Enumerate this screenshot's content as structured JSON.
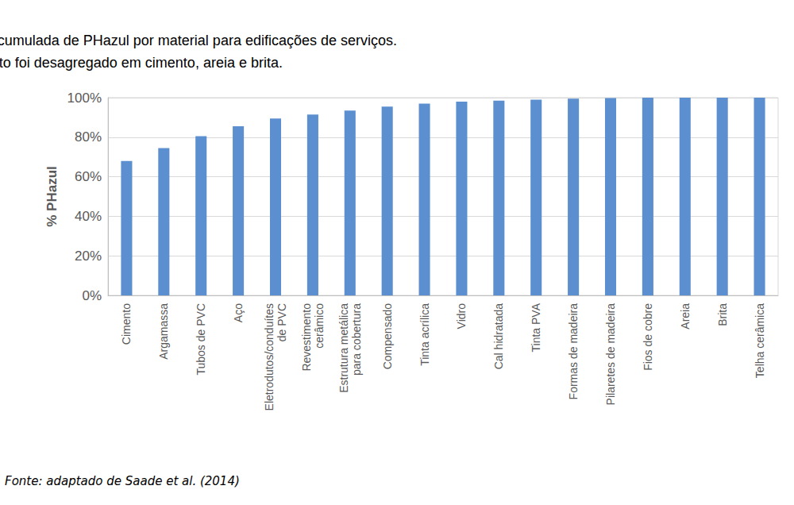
{
  "chart_data": {
    "type": "bar",
    "title": "Gráfico de contribuição acumulada de PHazul por material para edificações de serviços.\nConcreto foi desagregado em cimento, areia e brita.",
    "y_label": "% PHazul",
    "source": "Fonte: adaptado de Saade et al. (2014)",
    "categories": [
      "Cimento",
      "Argamassa",
      "Tubos de PVC",
      "Aço",
      "Eletrodutos/conduítes\nde PVC",
      "Revestimento\ncerâmico",
      "Estrutura metálica\npara cobertura",
      "Compensado",
      "Tinta acrílica",
      "Vidro",
      "Cal hidratada",
      "Tinta PVA",
      "Formas de madeira",
      "Pilaretes de madeira",
      "Fios de cobre",
      "Areia",
      "Brita",
      "Telha cerâmica"
    ],
    "values": [
      68,
      74.5,
      80.5,
      85.5,
      89.5,
      91.5,
      93.5,
      95.5,
      97,
      98,
      98.5,
      99,
      99.5,
      99.8,
      100,
      100,
      100,
      100
    ],
    "color": "#5b8fd0",
    "ylim": [
      0,
      100
    ],
    "yticks": [
      {
        "value": 0,
        "label": "0%"
      },
      {
        "value": 20,
        "label": "20%"
      },
      {
        "value": 40,
        "label": "40%"
      },
      {
        "value": 60,
        "label": "60%"
      },
      {
        "value": 80,
        "label": "80%"
      },
      {
        "value": 100,
        "label": "100%"
      }
    ],
    "grid": true
  }
}
